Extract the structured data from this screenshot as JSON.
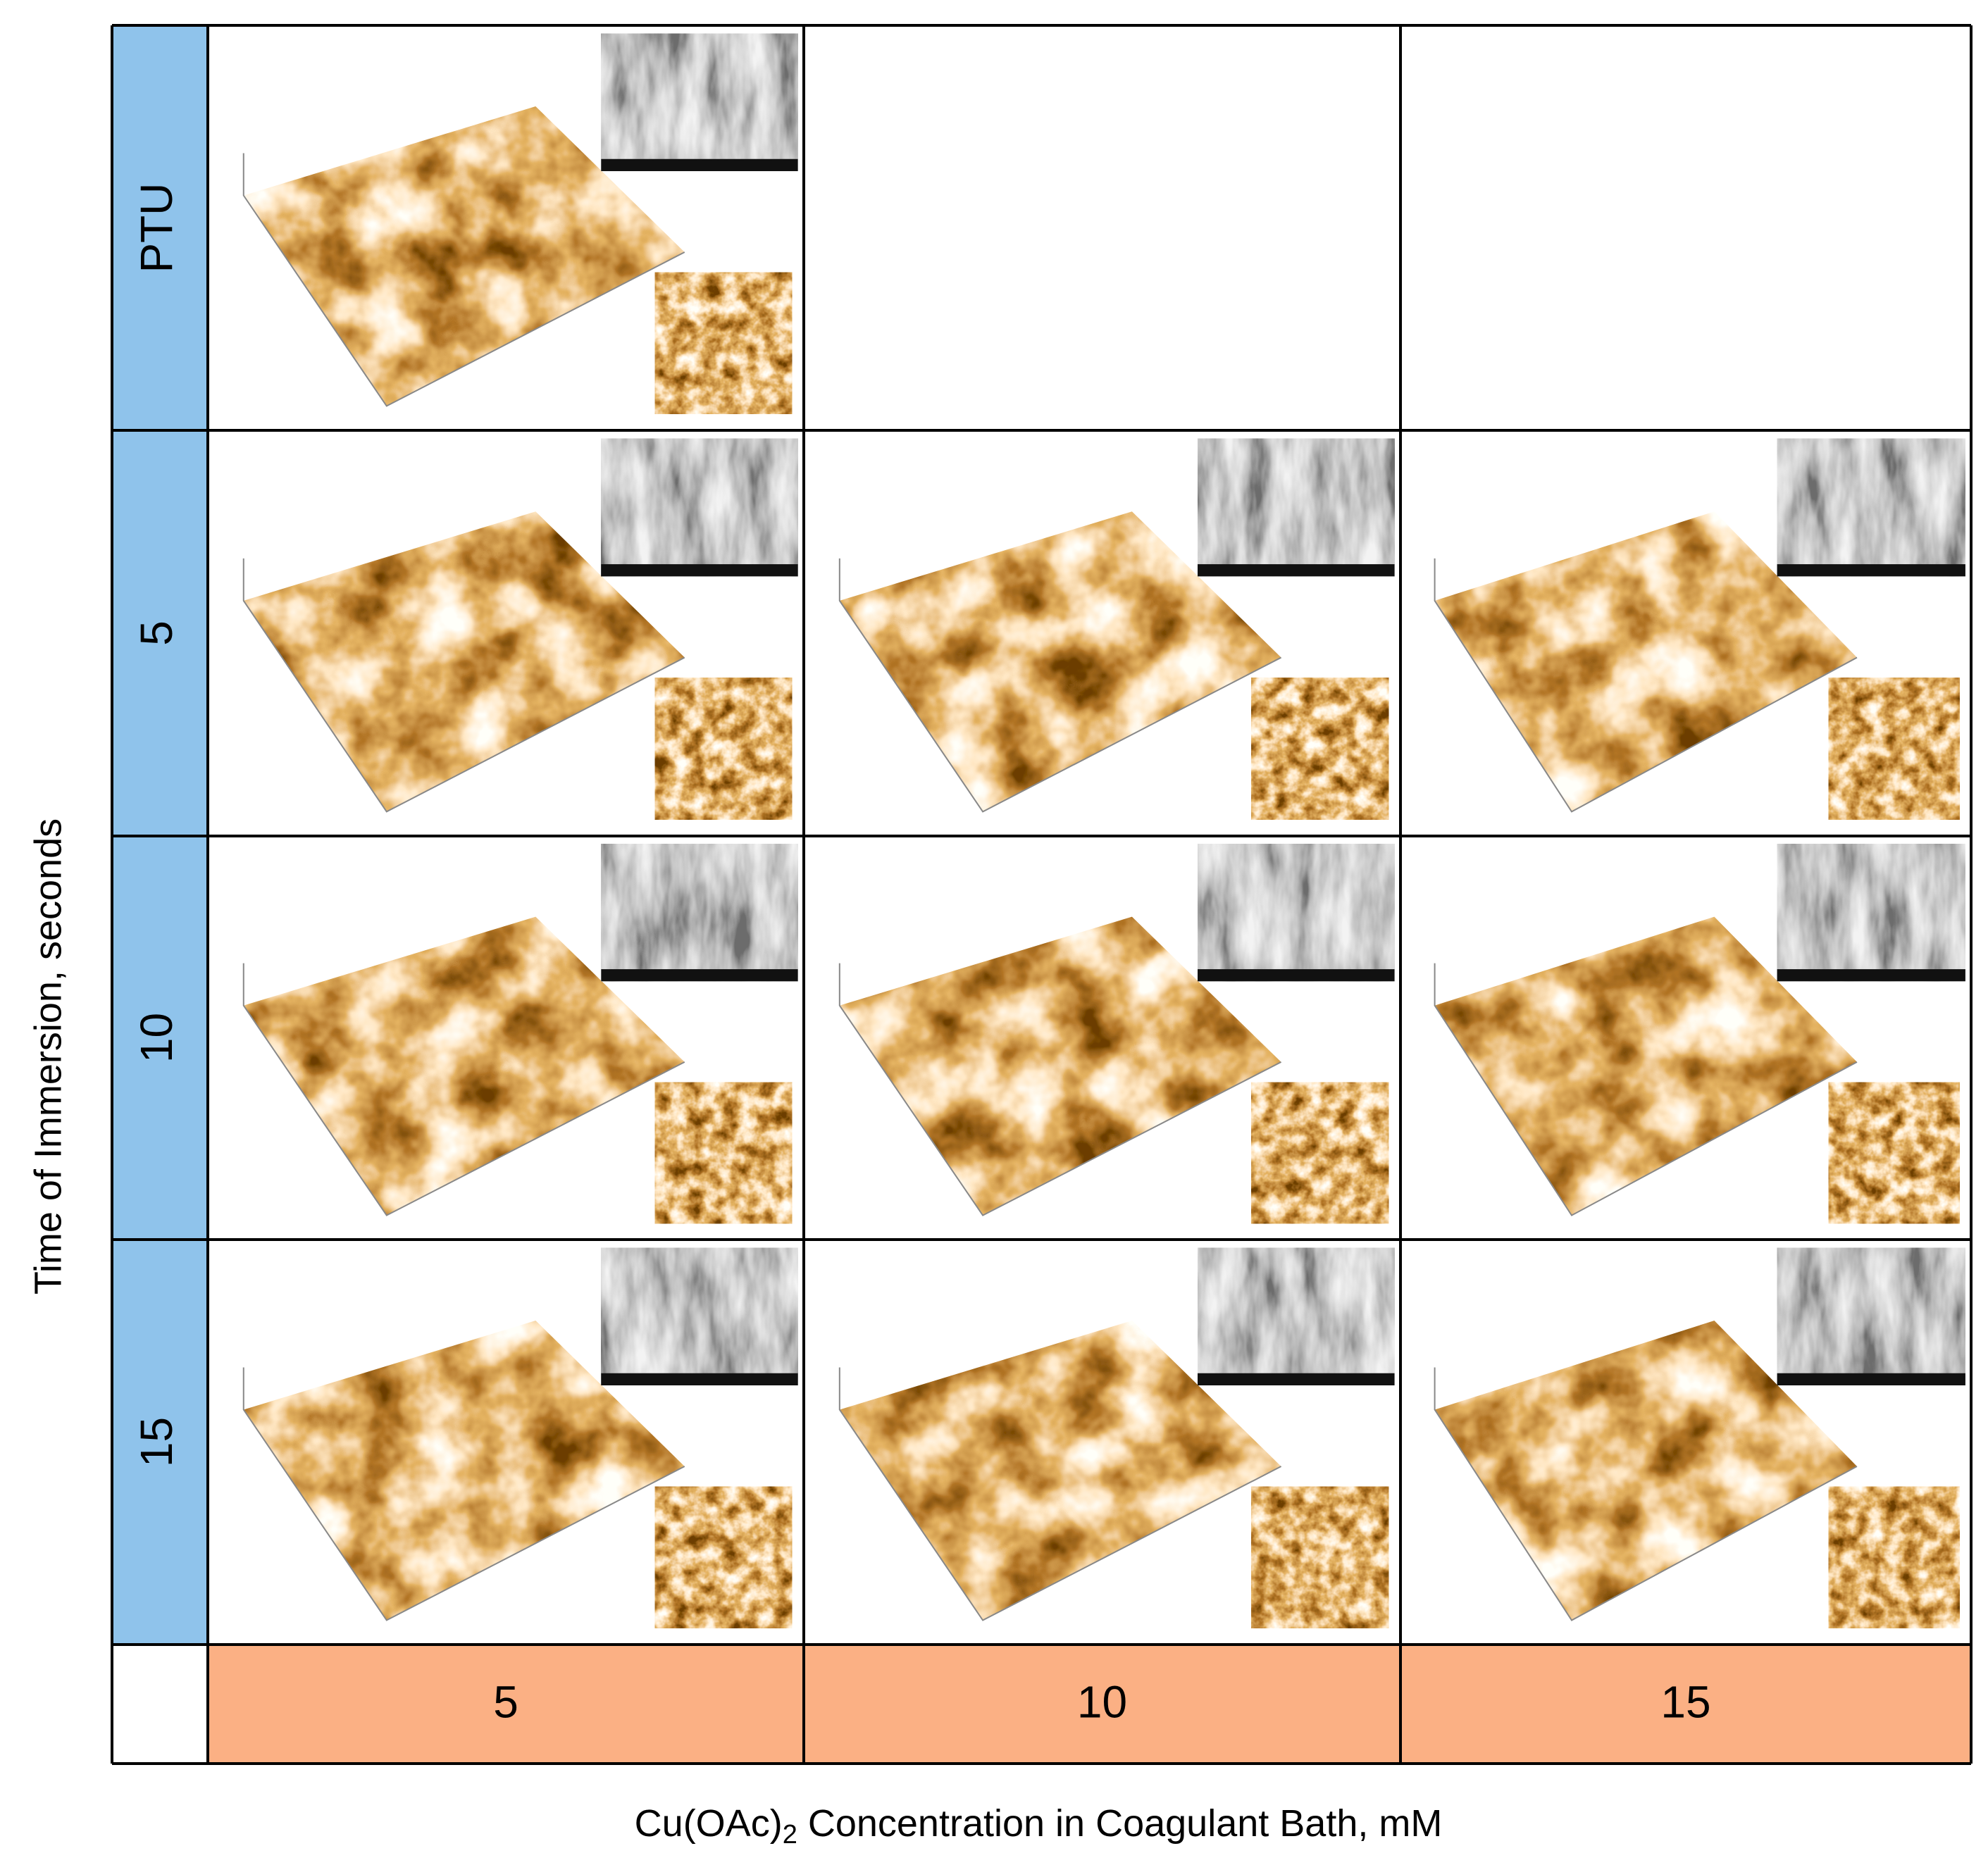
{
  "figure": {
    "y_axis_title": "Time of Immersion, seconds",
    "x_axis_title": {
      "main": "Cu(OAc)",
      "subscript": "2",
      "rest": " Concentration in Coagulant Bath, mM"
    },
    "row_labels": [
      "PTU",
      "5",
      "10",
      "15"
    ],
    "column_labels": [
      "5",
      "10",
      "15"
    ]
  }
}
